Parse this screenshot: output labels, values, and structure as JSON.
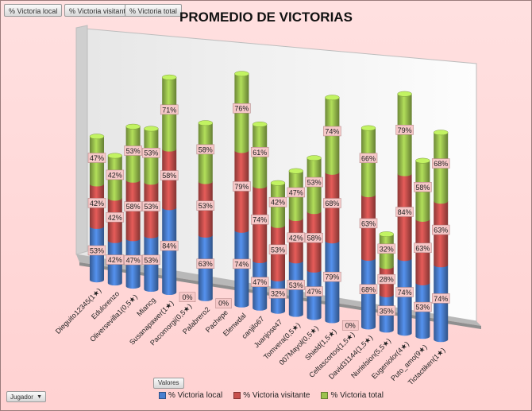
{
  "field_buttons": [
    "% Victoria local",
    "% Victoria visitante",
    "% Victoria total"
  ],
  "values_button": "Valores",
  "filter_button": "Jugador",
  "colors": {
    "local": "#4a7fd0",
    "visitante": "#c8504d",
    "total": "#9bc24e",
    "label_bg": "#f6c8c8"
  },
  "chart_data": {
    "type": "bar",
    "stacked": true,
    "three_d": true,
    "title": "PROMEDIO DE VICTORIAS",
    "xlabel": "",
    "ylabel": "",
    "legend_position": "bottom",
    "categories": [
      "Dieguito12345(1★)",
      "Edulorenzo",
      "Oliversevilla1(0,5★)",
      "Miancg",
      "Susanapawer(1★)",
      "Pacomorgi(0,5★)",
      "Palabrero2",
      "Pachepe",
      "Elenwdal",
      "canjilo67",
      "Juanjose47",
      "Tomvera(0,5★)",
      "007Mayol(0,5★)",
      "Shield(1,5★)",
      "Celtascortos(1,5★)",
      "David31144(1,5★)",
      "Nurielsion(5,5★)",
      "Eugeniolor(4★)",
      "Puto_amo(9★)",
      "Tictactiken(1★)"
    ],
    "series": [
      {
        "name": "% Victoria local",
        "values": [
          53,
          42,
          47,
          53,
          84,
          0,
          63,
          0,
          74,
          47,
          32,
          53,
          47,
          79,
          0,
          68,
          35,
          74,
          53,
          74
        ]
      },
      {
        "name": "% Victoria visitante",
        "values": [
          42,
          42,
          58,
          53,
          58,
          null,
          53,
          null,
          79,
          74,
          53,
          42,
          58,
          68,
          null,
          63,
          28,
          84,
          63,
          63
        ]
      },
      {
        "name": "% Victoria total",
        "values": [
          47,
          42,
          53,
          53,
          71,
          null,
          58,
          null,
          76,
          61,
          42,
          47,
          53,
          74,
          null,
          66,
          32,
          79,
          58,
          68
        ]
      }
    ],
    "data_labels": true,
    "label_suffix": "%",
    "grid": false
  }
}
